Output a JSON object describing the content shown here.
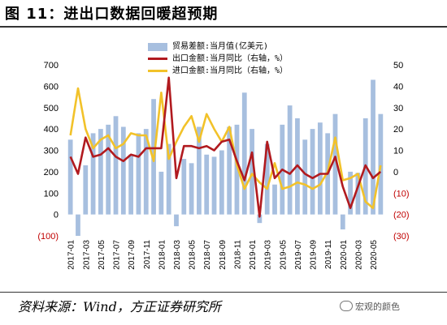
{
  "title": "图 11：进出口数据回暖超预期",
  "source": "资料来源：Wind，方正证券研究所",
  "watermark": "宏观的颜色",
  "colors": {
    "bar": "#a7bfdf",
    "export": "#b11a1f",
    "import": "#f2c22a",
    "negative_tick": "#c00000"
  },
  "chart_data": {
    "type": "bar+line",
    "categories": [
      "2017-01",
      "2017-02",
      "2017-03",
      "2017-04",
      "2017-05",
      "2017-06",
      "2017-07",
      "2017-08",
      "2017-09",
      "2017-10",
      "2017-11",
      "2017-12",
      "2018-01",
      "2018-02",
      "2018-03",
      "2018-04",
      "2018-05",
      "2018-06",
      "2018-07",
      "2018-08",
      "2018-09",
      "2018-10",
      "2018-11",
      "2018-12",
      "2019-01",
      "2019-02",
      "2019-03",
      "2019-04",
      "2019-05",
      "2019-06",
      "2019-07",
      "2019-08",
      "2019-09",
      "2019-10",
      "2019-11",
      "2019-12",
      "2020-01",
      "2020-02",
      "2020-03",
      "2020-04",
      "2020-05",
      "2020-06"
    ],
    "x_tick_labels": [
      "2017-01",
      "2017-03",
      "2017-05",
      "2017-07",
      "2017-09",
      "2017-11",
      "2018-01",
      "2018-03",
      "2018-05",
      "2018-07",
      "2018-09",
      "2018-11",
      "2019-01",
      "2019-03",
      "2019-05",
      "2019-07",
      "2019-09",
      "2019-11",
      "2020-01",
      "2020-03",
      "2020-05"
    ],
    "series": [
      {
        "name": "贸易差额:当月值(亿美元)",
        "kind": "bar",
        "axis": "left",
        "values": [
          350,
          -100,
          230,
          380,
          400,
          420,
          460,
          410,
          280,
          380,
          400,
          540,
          200,
          330,
          -55,
          260,
          240,
          410,
          280,
          270,
          300,
          410,
          420,
          570,
          400,
          -40,
          330,
          140,
          420,
          510,
          450,
          350,
          400,
          430,
          380,
          470,
          -70,
          200,
          195,
          450,
          630,
          470
        ]
      },
      {
        "name": "出口金额:当月同比（右轴，%）",
        "kind": "line",
        "axis": "right",
        "values": [
          7,
          -1,
          16,
          7,
          8,
          11,
          7,
          5,
          8,
          7,
          11,
          11,
          11,
          44,
          -3,
          12,
          12,
          11,
          12,
          10,
          14,
          15,
          5,
          -4,
          9,
          -21,
          14,
          -3,
          1,
          -1,
          3,
          -1,
          -3,
          -1,
          -1,
          7,
          -7,
          -17,
          -7,
          3,
          -3,
          0
        ]
      },
      {
        "name": "进口金额:当月同比（右轴，%）",
        "kind": "line",
        "axis": "right",
        "values": [
          17,
          39,
          20,
          11,
          15,
          17,
          11,
          13,
          18,
          17,
          17,
          5,
          37,
          6,
          14,
          21,
          26,
          14,
          27,
          20,
          14,
          21,
          3,
          -8,
          -1,
          -5,
          -8,
          4,
          -8,
          -7,
          -5,
          -6,
          -8,
          -6,
          0,
          16,
          -4,
          -3,
          -1,
          -14,
          -17,
          3
        ]
      }
    ],
    "y_left": {
      "min": -100,
      "max": 700,
      "ticks": [
        -100,
        0,
        100,
        200,
        300,
        400,
        500,
        600,
        700
      ],
      "tick_labels": [
        "(100)",
        "0",
        "100",
        "200",
        "300",
        "400",
        "500",
        "600",
        "700"
      ]
    },
    "y_right": {
      "min": -30,
      "max": 50,
      "ticks": [
        -30,
        -20,
        -10,
        0,
        10,
        20,
        30,
        40,
        50
      ],
      "tick_labels": [
        "(30)",
        "(20)",
        "(10)",
        "0",
        "10",
        "20",
        "30",
        "40",
        "50"
      ]
    },
    "legend_position": "top-center"
  }
}
